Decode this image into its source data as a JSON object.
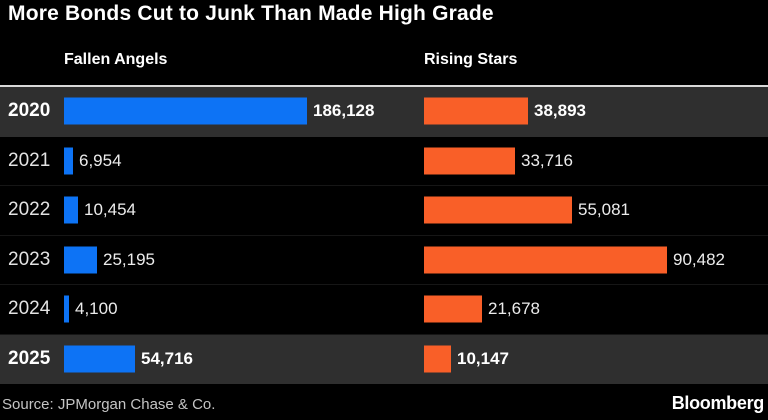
{
  "title": "More Bonds Cut to Junk Than Made High Grade",
  "column_headers": {
    "left": "Fallen Angels",
    "right": "Rising Stars"
  },
  "chart_data": {
    "type": "bar",
    "orientation": "horizontal",
    "title": "More Bonds Cut to Junk Than Made High Grade",
    "categories": [
      "2020",
      "2021",
      "2022",
      "2023",
      "2024",
      "2025"
    ],
    "series": [
      {
        "name": "Fallen Angels",
        "color": "#0d73f5",
        "values": [
          186128,
          6954,
          10454,
          25195,
          4100,
          54716
        ],
        "labels": [
          "186,128",
          "6,954",
          "10,454",
          "25,195",
          "4,100",
          "54,716"
        ]
      },
      {
        "name": "Rising Stars",
        "color": "#f95f28",
        "values": [
          38893,
          33716,
          55081,
          90482,
          21678,
          10147
        ],
        "labels": [
          "38,893",
          "33,716",
          "55,081",
          "90,482",
          "21,678",
          "10,147"
        ]
      }
    ],
    "highlighted_categories": [
      "2020",
      "2025"
    ],
    "scaling": "each series normalized to its own max",
    "grid": "off",
    "legend_position": "column headers above each bar group"
  },
  "colors": {
    "background": "#000000",
    "highlight_row_bg": "#2f2f2f",
    "fallen_angels_bar": "#0d73f5",
    "rising_stars_bar": "#f95f28",
    "header_rule": "#d9d9d9",
    "text_primary": "#ffffff",
    "text_secondary": "#e3e3e3",
    "source_text": "#c4c4c4"
  },
  "footer": {
    "source": "Source: JPMorgan Chase & Co.",
    "brand": "Bloomberg"
  }
}
